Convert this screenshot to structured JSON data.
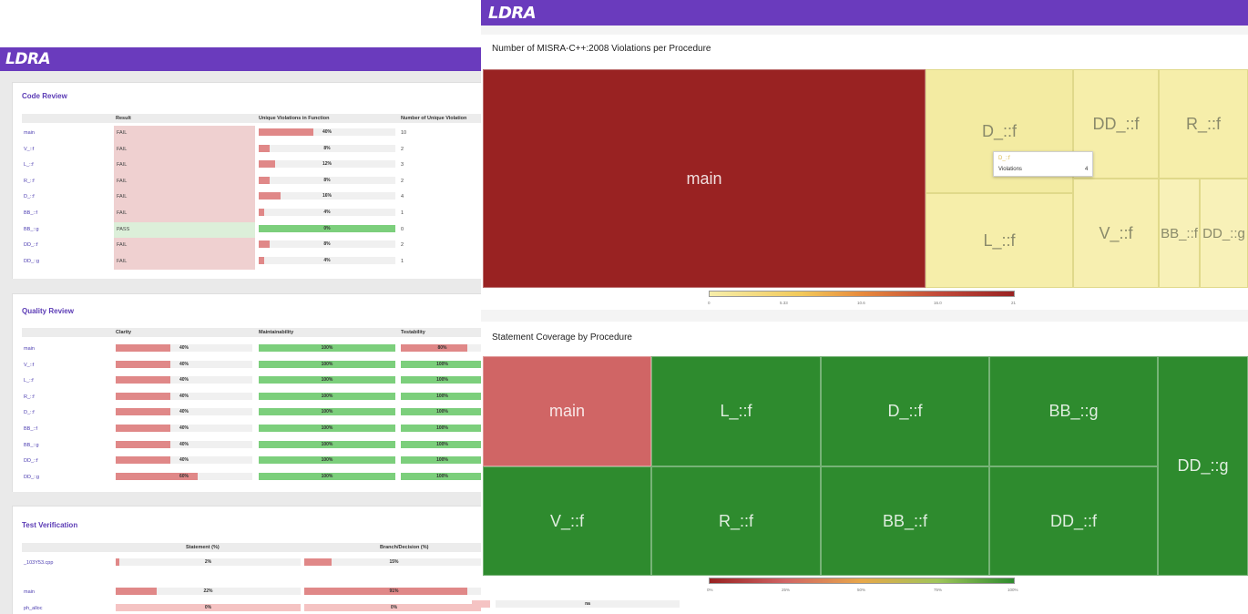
{
  "brand": "LDRA",
  "colors": {
    "brand_purple": "#6a3bbd",
    "fail_bg": "#efd0d0",
    "pass_bg": "#dcefd9",
    "red_bar": "#e08888",
    "green_bar": "#7ccf7c",
    "pink_bar": "#f5c3c3",
    "treemap_dark_red": "#992222",
    "treemap_light_yellow": "#f6eeaa",
    "treemap_green": "#2e8b2e",
    "treemap_coral": "#d06565"
  },
  "code_review": {
    "title": "Code Review",
    "headers": [
      "Result",
      "Unique Violations in Function",
      "Number of Unique Violation"
    ],
    "rows": [
      {
        "name": "main",
        "result": "FAIL",
        "pct_label": "40%",
        "pct": 40,
        "count": "10"
      },
      {
        "name": "V_::f",
        "result": "FAIL",
        "pct_label": "8%",
        "pct": 8,
        "count": "2"
      },
      {
        "name": "L_::f",
        "result": "FAIL",
        "pct_label": "12%",
        "pct": 12,
        "count": "3"
      },
      {
        "name": "R_::f",
        "result": "FAIL",
        "pct_label": "8%",
        "pct": 8,
        "count": "2"
      },
      {
        "name": "D_::f",
        "result": "FAIL",
        "pct_label": "16%",
        "pct": 16,
        "count": "4"
      },
      {
        "name": "BB_::f",
        "result": "FAIL",
        "pct_label": "4%",
        "pct": 4,
        "count": "1"
      },
      {
        "name": "BB_::g",
        "result": "PASS",
        "pct_label": "0%",
        "pct": 0,
        "count": "0"
      },
      {
        "name": "DD_::f",
        "result": "FAIL",
        "pct_label": "8%",
        "pct": 8,
        "count": "2"
      },
      {
        "name": "DD_::g",
        "result": "FAIL",
        "pct_label": "4%",
        "pct": 4,
        "count": "1"
      }
    ]
  },
  "quality_review": {
    "title": "Quality Review",
    "headers": [
      "Clarity",
      "Maintainability",
      "Testability"
    ],
    "rows": [
      {
        "name": "main",
        "clarity_label": "40%",
        "clarity": 40,
        "maint_label": "100%",
        "maint": 100,
        "test_label": "80%",
        "test": 80
      },
      {
        "name": "V_::f",
        "clarity_label": "40%",
        "clarity": 40,
        "maint_label": "100%",
        "maint": 100,
        "test_label": "100%",
        "test": 100
      },
      {
        "name": "L_::f",
        "clarity_label": "40%",
        "clarity": 40,
        "maint_label": "100%",
        "maint": 100,
        "test_label": "100%",
        "test": 100
      },
      {
        "name": "R_::f",
        "clarity_label": "40%",
        "clarity": 40,
        "maint_label": "100%",
        "maint": 100,
        "test_label": "100%",
        "test": 100
      },
      {
        "name": "D_::f",
        "clarity_label": "40%",
        "clarity": 40,
        "maint_label": "100%",
        "maint": 100,
        "test_label": "100%",
        "test": 100
      },
      {
        "name": "BB_::f",
        "clarity_label": "40%",
        "clarity": 40,
        "maint_label": "100%",
        "maint": 100,
        "test_label": "100%",
        "test": 100
      },
      {
        "name": "BB_::g",
        "clarity_label": "40%",
        "clarity": 40,
        "maint_label": "100%",
        "maint": 100,
        "test_label": "100%",
        "test": 100
      },
      {
        "name": "DD_::f",
        "clarity_label": "40%",
        "clarity": 40,
        "maint_label": "100%",
        "maint": 100,
        "test_label": "100%",
        "test": 100
      },
      {
        "name": "DD_::g",
        "clarity_label": "60%",
        "clarity": 60,
        "maint_label": "100%",
        "maint": 100,
        "test_label": "100%",
        "test": 100
      }
    ]
  },
  "test_verification": {
    "title": "Test Verification",
    "headers": [
      "Statement (%)",
      "Branch/Decision (%)"
    ],
    "file_row": {
      "name": "_103Y53.cpp",
      "stmt_label": "2%",
      "stmt": 2,
      "branch_label": "15%",
      "branch": 15
    },
    "rows": [
      {
        "name": "main",
        "stmt_label": "22%",
        "stmt": 22,
        "branch_label": "91%",
        "branch": 91
      },
      {
        "name": "ph_alloc",
        "stmt_label": "0%",
        "stmt": 0,
        "branch_label": "0%",
        "branch": 0,
        "extra": "na"
      }
    ]
  },
  "violations_treemap": {
    "title": "Number of MISRA-C++:2008 Violations per Procedure",
    "tiles": [
      "main",
      "D_::f",
      "DD_::f",
      "R_::f",
      "L_::f",
      "V_::f",
      "BB_::f",
      "DD_::g"
    ],
    "tooltip": {
      "name": "D_::f",
      "label": "Violations",
      "value": "4"
    },
    "legend_ticks": [
      "0",
      "5.33",
      "10.6",
      "16.0",
      "21"
    ]
  },
  "coverage_treemap": {
    "title": "Statement Coverage by Procedure",
    "tiles": [
      "main",
      "L_::f",
      "D_::f",
      "BB_::g",
      "DD_::g",
      "V_::f",
      "R_::f",
      "BB_::f",
      "DD_::f"
    ],
    "legend_ticks": [
      "0%",
      "25%",
      "50%",
      "75%",
      "100%"
    ]
  }
}
